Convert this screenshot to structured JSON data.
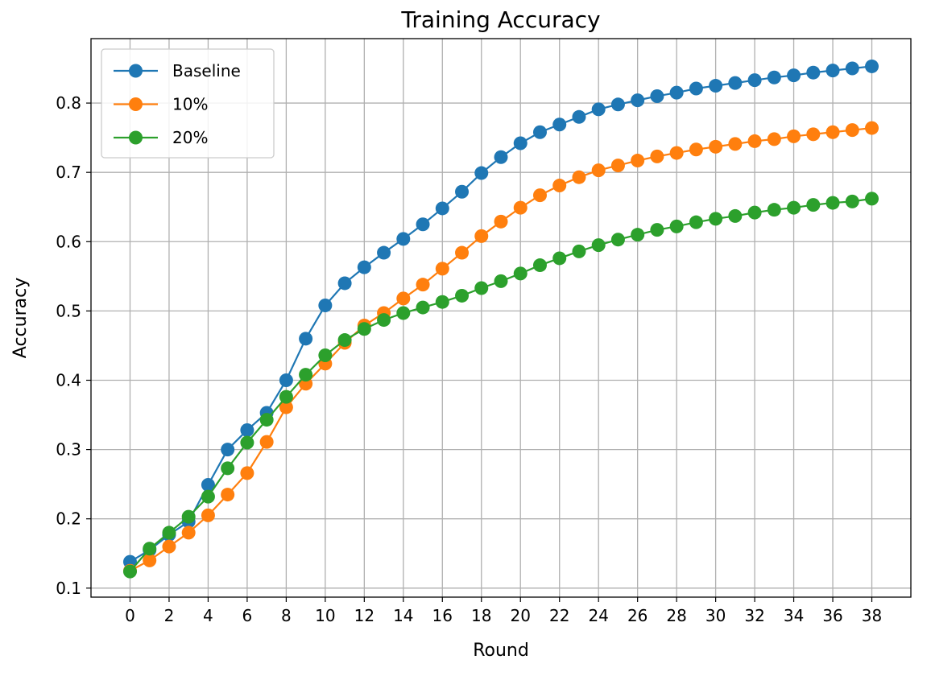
{
  "chart_data": {
    "type": "line",
    "title": "Training Accuracy",
    "xlabel": "Round",
    "ylabel": "Accuracy",
    "xlim": [
      -2,
      40
    ],
    "ylim": [
      0.087,
      0.893
    ],
    "xticks": [
      0,
      2,
      4,
      6,
      8,
      10,
      12,
      14,
      16,
      18,
      20,
      22,
      24,
      26,
      28,
      30,
      32,
      34,
      36,
      38
    ],
    "yticks": [
      0.1,
      0.2,
      0.3,
      0.4,
      0.5,
      0.6,
      0.7,
      0.8
    ],
    "ytick_labels": [
      "0.1",
      "0.2",
      "0.3",
      "0.4",
      "0.5",
      "0.6",
      "0.7",
      "0.8"
    ],
    "grid": true,
    "legend_position": "top-left",
    "x": [
      0,
      1,
      2,
      3,
      4,
      5,
      6,
      7,
      8,
      9,
      10,
      11,
      12,
      13,
      14,
      15,
      16,
      17,
      18,
      19,
      20,
      21,
      22,
      23,
      24,
      25,
      26,
      27,
      28,
      29,
      30,
      31,
      32,
      33,
      34,
      35,
      36,
      37,
      38
    ],
    "series": [
      {
        "name": "Baseline",
        "color": "#1f77b4",
        "marker": "circle",
        "values": [
          0.138,
          0.155,
          0.177,
          0.196,
          0.249,
          0.3,
          0.328,
          0.353,
          0.4,
          0.46,
          0.508,
          0.54,
          0.563,
          0.584,
          0.604,
          0.625,
          0.648,
          0.672,
          0.699,
          0.722,
          0.742,
          0.758,
          0.769,
          0.78,
          0.791,
          0.798,
          0.804,
          0.81,
          0.815,
          0.821,
          0.825,
          0.829,
          0.833,
          0.837,
          0.84,
          0.844,
          0.847,
          0.85,
          0.853
        ]
      },
      {
        "name": "10%",
        "color": "#ff7f0e",
        "marker": "circle",
        "values": [
          0.125,
          0.14,
          0.16,
          0.18,
          0.205,
          0.235,
          0.266,
          0.311,
          0.361,
          0.395,
          0.424,
          0.454,
          0.479,
          0.497,
          0.518,
          0.538,
          0.561,
          0.584,
          0.608,
          0.629,
          0.649,
          0.667,
          0.681,
          0.693,
          0.703,
          0.71,
          0.717,
          0.723,
          0.728,
          0.733,
          0.737,
          0.741,
          0.745,
          0.748,
          0.752,
          0.755,
          0.758,
          0.761,
          0.764
        ]
      },
      {
        "name": "20%",
        "color": "#2ca02c",
        "marker": "circle",
        "values": [
          0.124,
          0.157,
          0.18,
          0.203,
          0.232,
          0.273,
          0.31,
          0.343,
          0.376,
          0.408,
          0.436,
          0.458,
          0.474,
          0.487,
          0.497,
          0.505,
          0.513,
          0.522,
          0.533,
          0.543,
          0.554,
          0.566,
          0.576,
          0.586,
          0.595,
          0.603,
          0.61,
          0.617,
          0.622,
          0.628,
          0.633,
          0.637,
          0.642,
          0.646,
          0.649,
          0.653,
          0.656,
          0.658,
          0.662
        ]
      }
    ]
  }
}
